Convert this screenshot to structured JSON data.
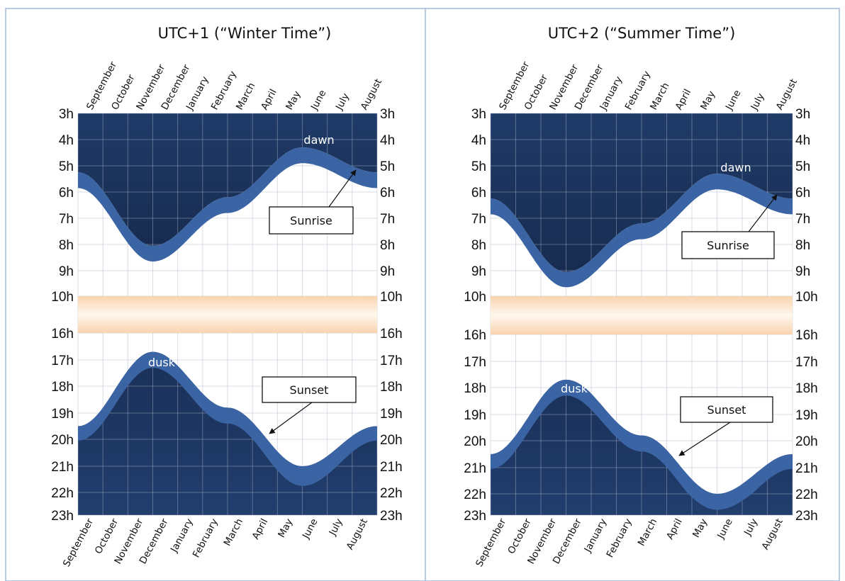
{
  "chart_data": [
    {
      "type": "area",
      "title": "UTC+1 (“Winter Time”)",
      "x_categories": [
        "September",
        "October",
        "November",
        "December",
        "January",
        "February",
        "March",
        "April",
        "May",
        "June",
        "July",
        "August"
      ],
      "y_tick_labels": [
        "3h",
        "4h",
        "5h",
        "6h",
        "7h",
        "8h",
        "9h",
        "10h",
        "16h",
        "17h",
        "18h",
        "19h",
        "20h",
        "21h",
        "22h",
        "23h"
      ],
      "y_scale": "broken axis: 3h–10h and 16h–23h",
      "grid": true,
      "day_band": [
        10,
        16
      ],
      "series": [
        {
          "name": "dawn",
          "x": [
            0,
            3,
            6,
            9,
            12
          ],
          "y": [
            5.25,
            8.05,
            6.2,
            4.3,
            5.25
          ]
        },
        {
          "name": "Sunrise",
          "x": [
            0,
            3,
            6,
            9,
            12
          ],
          "y": [
            5.85,
            8.65,
            6.8,
            4.9,
            5.85
          ]
        },
        {
          "name": "Sunset",
          "x": [
            0,
            3,
            6,
            9,
            12
          ],
          "y": [
            20.05,
            17.3,
            19.4,
            21.75,
            20.05
          ]
        },
        {
          "name": "dusk",
          "x": [
            0,
            3,
            6,
            9,
            12
          ],
          "y": [
            19.5,
            16.7,
            18.8,
            21.0,
            19.5
          ]
        }
      ],
      "annotations": [
        "dawn",
        "Sunrise",
        "dusk",
        "Sunset"
      ]
    },
    {
      "type": "area",
      "title": "UTC+2 (“Summer Time”)",
      "x_categories": [
        "September",
        "October",
        "November",
        "December",
        "January",
        "February",
        "March",
        "April",
        "May",
        "June",
        "July",
        "August"
      ],
      "y_tick_labels": [
        "3h",
        "4h",
        "5h",
        "6h",
        "7h",
        "8h",
        "9h",
        "10h",
        "16h",
        "17h",
        "18h",
        "19h",
        "20h",
        "21h",
        "22h",
        "23h"
      ],
      "y_scale": "broken axis: 3h–10h and 16h–23h",
      "grid": true,
      "day_band": [
        10,
        16
      ],
      "series": [
        {
          "name": "dawn",
          "x": [
            0,
            3,
            6,
            9,
            12
          ],
          "y": [
            6.25,
            9.05,
            7.2,
            5.3,
            6.25
          ]
        },
        {
          "name": "Sunrise",
          "x": [
            0,
            3,
            6,
            9,
            12
          ],
          "y": [
            6.85,
            9.65,
            7.8,
            5.9,
            6.85
          ]
        },
        {
          "name": "Sunset",
          "x": [
            0,
            3,
            6,
            9,
            12
          ],
          "y": [
            21.05,
            18.3,
            20.4,
            22.75,
            21.05
          ]
        },
        {
          "name": "dusk",
          "x": [
            0,
            3,
            6,
            9,
            12
          ],
          "y": [
            20.5,
            17.7,
            19.8,
            22.0,
            20.5
          ]
        }
      ],
      "annotations": [
        "dawn",
        "Sunrise",
        "dusk",
        "Sunset"
      ]
    }
  ]
}
